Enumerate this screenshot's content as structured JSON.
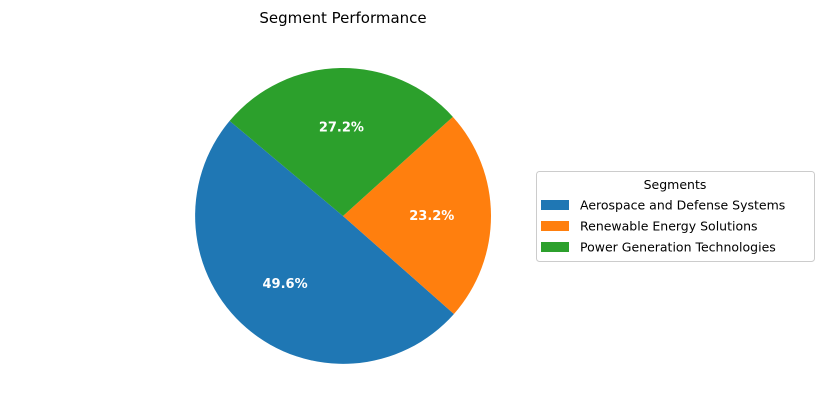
{
  "chart_data": {
    "type": "pie",
    "title": "Segment Performance",
    "legend_title": "Segments",
    "legend_position": "right",
    "start_angle_deg": 140,
    "direction": "counterclockwise",
    "slices": [
      {
        "label": "Aerospace and Defense Systems",
        "value": 49.6,
        "pct_label": "49.6%",
        "color": "#1f77b4"
      },
      {
        "label": "Renewable Energy Solutions",
        "value": 23.2,
        "pct_label": "23.2%",
        "color": "#ff7f0e"
      },
      {
        "label": "Power Generation Technologies",
        "value": 27.2,
        "pct_label": "27.2%",
        "color": "#2ca02c"
      }
    ]
  }
}
